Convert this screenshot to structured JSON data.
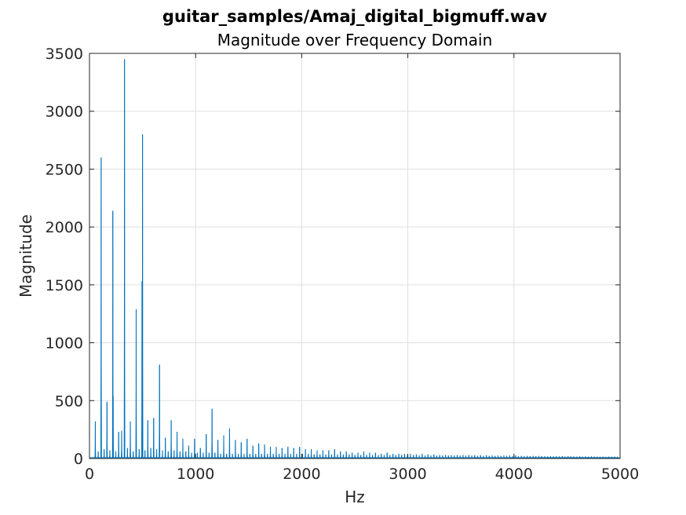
{
  "chart_data": {
    "type": "line",
    "title": "guitar_samples/Amaj_digital_bigmuff.wav",
    "subtitle": "Magnitude over Frequency Domain",
    "xlabel": "Hz",
    "ylabel": "Magnitude",
    "xlim": [
      0,
      5000
    ],
    "ylim": [
      0,
      3500
    ],
    "xticks": [
      0,
      1000,
      2000,
      3000,
      4000,
      5000
    ],
    "yticks": [
      0,
      500,
      1000,
      1500,
      2000,
      2500,
      3000,
      3500
    ],
    "grid": true,
    "color": "#0072BD",
    "series": [
      {
        "name": "",
        "peaks": [
          [
            55,
            320
          ],
          [
            82,
            60
          ],
          [
            110,
            2600
          ],
          [
            138,
            80
          ],
          [
            165,
            490
          ],
          [
            192,
            70
          ],
          [
            220,
            2140
          ],
          [
            223,
            540
          ],
          [
            248,
            60
          ],
          [
            275,
            230
          ],
          [
            303,
            240
          ],
          [
            330,
            3450
          ],
          [
            358,
            90
          ],
          [
            385,
            320
          ],
          [
            412,
            60
          ],
          [
            440,
            1290
          ],
          [
            468,
            80
          ],
          [
            495,
            1530
          ],
          [
            500,
            2800
          ],
          [
            523,
            70
          ],
          [
            550,
            330
          ],
          [
            578,
            90
          ],
          [
            605,
            350
          ],
          [
            633,
            80
          ],
          [
            660,
            810
          ],
          [
            688,
            70
          ],
          [
            715,
            180
          ],
          [
            742,
            60
          ],
          [
            770,
            330
          ],
          [
            798,
            70
          ],
          [
            825,
            230
          ],
          [
            853,
            60
          ],
          [
            880,
            170
          ],
          [
            908,
            60
          ],
          [
            935,
            110
          ],
          [
            962,
            50
          ],
          [
            990,
            170
          ],
          [
            1017,
            50
          ],
          [
            1045,
            90
          ],
          [
            1072,
            50
          ],
          [
            1100,
            210
          ],
          [
            1127,
            50
          ],
          [
            1155,
            430
          ],
          [
            1182,
            50
          ],
          [
            1210,
            160
          ],
          [
            1237,
            40
          ],
          [
            1265,
            200
          ],
          [
            1292,
            40
          ],
          [
            1320,
            260
          ],
          [
            1347,
            40
          ],
          [
            1375,
            160
          ],
          [
            1402,
            40
          ],
          [
            1430,
            140
          ],
          [
            1457,
            40
          ],
          [
            1485,
            170
          ],
          [
            1512,
            40
          ],
          [
            1540,
            110
          ],
          [
            1567,
            40
          ],
          [
            1595,
            130
          ],
          [
            1622,
            40
          ],
          [
            1650,
            120
          ],
          [
            1677,
            40
          ],
          [
            1705,
            100
          ],
          [
            1732,
            40
          ],
          [
            1760,
            100
          ],
          [
            1787,
            40
          ],
          [
            1815,
            90
          ],
          [
            1842,
            40
          ],
          [
            1870,
            100
          ],
          [
            1897,
            40
          ],
          [
            1925,
            90
          ],
          [
            1952,
            40
          ],
          [
            1980,
            100
          ],
          [
            2007,
            40
          ],
          [
            2035,
            80
          ],
          [
            2062,
            40
          ],
          [
            2090,
            80
          ],
          [
            2117,
            35
          ],
          [
            2145,
            70
          ],
          [
            2172,
            35
          ],
          [
            2200,
            70
          ],
          [
            2227,
            35
          ],
          [
            2255,
            70
          ],
          [
            2282,
            35
          ],
          [
            2310,
            80
          ],
          [
            2337,
            35
          ],
          [
            2365,
            60
          ],
          [
            2392,
            35
          ],
          [
            2420,
            60
          ],
          [
            2447,
            35
          ],
          [
            2475,
            50
          ],
          [
            2502,
            30
          ],
          [
            2530,
            50
          ],
          [
            2557,
            30
          ],
          [
            2585,
            60
          ],
          [
            2612,
            30
          ],
          [
            2640,
            50
          ],
          [
            2667,
            30
          ],
          [
            2695,
            50
          ],
          [
            2722,
            30
          ],
          [
            2750,
            40
          ],
          [
            2777,
            30
          ],
          [
            2805,
            50
          ],
          [
            2832,
            30
          ],
          [
            2860,
            40
          ],
          [
            2887,
            30
          ],
          [
            2915,
            40
          ],
          [
            2942,
            30
          ],
          [
            2970,
            40
          ],
          [
            2997,
            30
          ],
          [
            3025,
            40
          ],
          [
            3052,
            30
          ],
          [
            3080,
            35
          ],
          [
            3107,
            25
          ],
          [
            3135,
            40
          ],
          [
            3162,
            25
          ],
          [
            3190,
            35
          ],
          [
            3217,
            25
          ],
          [
            3245,
            35
          ],
          [
            3272,
            25
          ],
          [
            3300,
            30
          ],
          [
            3327,
            25
          ],
          [
            3355,
            30
          ],
          [
            3382,
            25
          ],
          [
            3410,
            30
          ],
          [
            3437,
            25
          ],
          [
            3465,
            30
          ],
          [
            3492,
            25
          ],
          [
            3520,
            30
          ],
          [
            3547,
            25
          ],
          [
            3575,
            30
          ],
          [
            3602,
            25
          ],
          [
            3630,
            28
          ],
          [
            3657,
            22
          ],
          [
            3685,
            28
          ],
          [
            3712,
            22
          ],
          [
            3740,
            28
          ],
          [
            3767,
            22
          ],
          [
            3795,
            25
          ],
          [
            3822,
            22
          ],
          [
            3850,
            25
          ],
          [
            3877,
            22
          ],
          [
            3905,
            25
          ],
          [
            3932,
            22
          ],
          [
            3960,
            25
          ],
          [
            3987,
            20
          ],
          [
            4015,
            25
          ],
          [
            4042,
            20
          ],
          [
            4070,
            22
          ],
          [
            4097,
            20
          ],
          [
            4125,
            22
          ],
          [
            4152,
            20
          ],
          [
            4180,
            22
          ],
          [
            4207,
            20
          ],
          [
            4235,
            22
          ],
          [
            4262,
            20
          ],
          [
            4290,
            20
          ],
          [
            4317,
            18
          ],
          [
            4345,
            20
          ],
          [
            4372,
            18
          ],
          [
            4400,
            20
          ],
          [
            4427,
            18
          ],
          [
            4455,
            20
          ],
          [
            4482,
            18
          ],
          [
            4510,
            20
          ],
          [
            4537,
            18
          ],
          [
            4565,
            18
          ],
          [
            4592,
            16
          ],
          [
            4620,
            18
          ],
          [
            4647,
            16
          ],
          [
            4675,
            18
          ],
          [
            4702,
            16
          ],
          [
            4730,
            18
          ],
          [
            4757,
            16
          ],
          [
            4785,
            16
          ],
          [
            4812,
            15
          ],
          [
            4840,
            16
          ],
          [
            4867,
            15
          ],
          [
            4895,
            16
          ],
          [
            4922,
            15
          ],
          [
            4950,
            16
          ],
          [
            4977,
            15
          ]
        ]
      }
    ]
  }
}
